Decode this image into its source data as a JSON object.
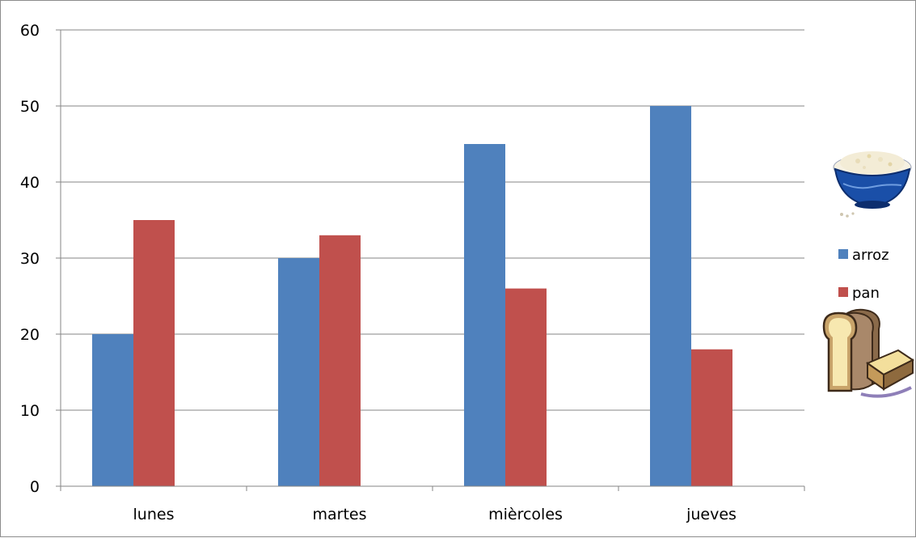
{
  "chart_data": {
    "type": "bar",
    "categories": [
      "lunes",
      "martes",
      "mièrcoles",
      "jueves"
    ],
    "series": [
      {
        "name": "arroz",
        "values": [
          20,
          30,
          45,
          50
        ],
        "color": "#4f81bd"
      },
      {
        "name": "pan",
        "values": [
          35,
          33,
          26,
          18
        ],
        "color": "#c0504d"
      }
    ],
    "ylim": [
      0,
      60
    ],
    "yticks": [
      0,
      10,
      20,
      30,
      40,
      50,
      60
    ],
    "grid": true,
    "legend_position": "right",
    "title": "",
    "xlabel": "",
    "ylabel": ""
  },
  "decorations": {
    "rice_bowl_icon": "rice-bowl-icon",
    "bread_icon": "bread-icon"
  }
}
